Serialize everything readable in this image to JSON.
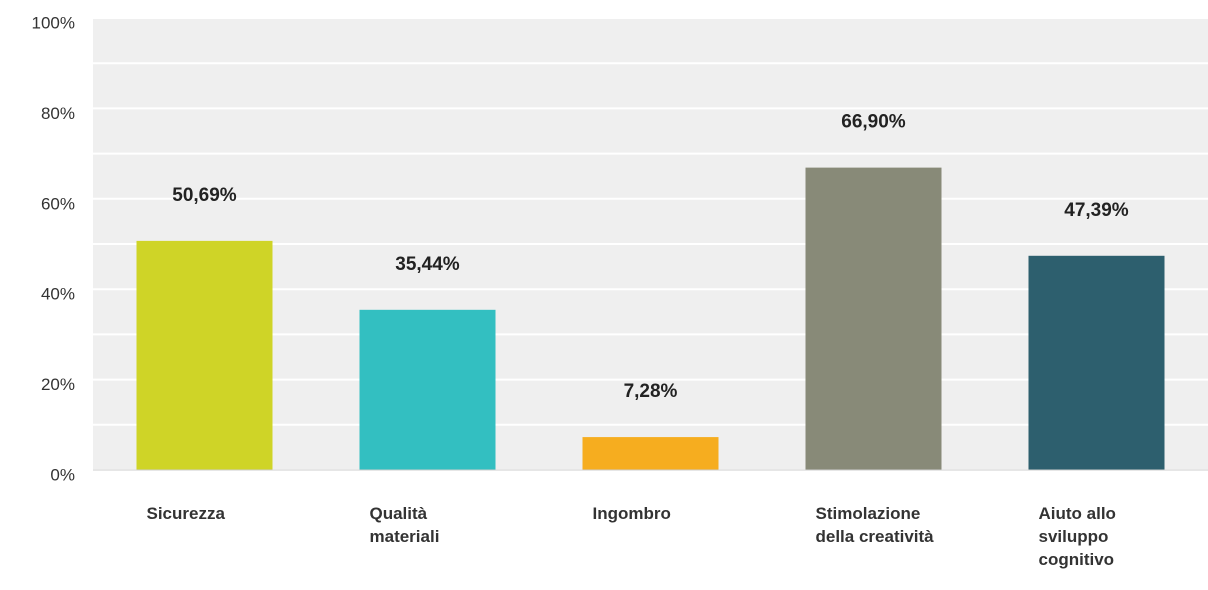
{
  "chart_data": {
    "type": "bar",
    "categories": [
      "Sicurezza",
      "Qualità materiali",
      "Ingombro",
      "Stimolazione della creatività",
      "Aiuto allo sviluppo cognitivo"
    ],
    "values": [
      50.69,
      35.44,
      7.28,
      66.9,
      47.39
    ],
    "value_labels": [
      "50,69%",
      "35,44%",
      "7,28%",
      "66,90%",
      "47,39%"
    ],
    "colors": [
      "#cfd427",
      "#33bfc1",
      "#f6ad1f",
      "#888a78",
      "#2d5f6e"
    ],
    "ylim": [
      0,
      100
    ],
    "yticks": [
      {
        "value": 0,
        "label": "0%"
      },
      {
        "value": 20,
        "label": "20%"
      },
      {
        "value": 40,
        "label": "40%"
      },
      {
        "value": 60,
        "label": "60%"
      },
      {
        "value": 80,
        "label": "80%"
      },
      {
        "value": 100,
        "label": "100%"
      }
    ],
    "minor_yticks": [
      10,
      30,
      50,
      70,
      90
    ],
    "grid": true
  }
}
